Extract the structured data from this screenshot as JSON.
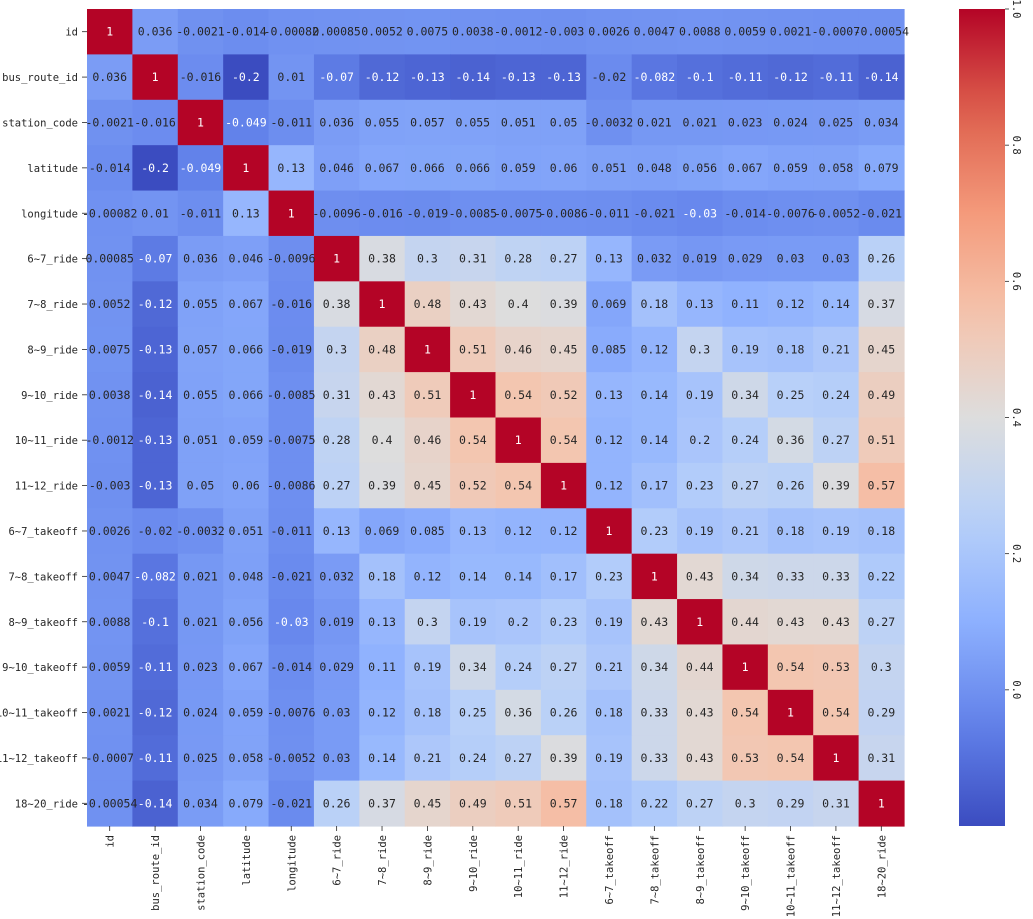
{
  "chart_data": {
    "type": "heatmap",
    "title": "",
    "xlabel": "",
    "ylabel": "",
    "labels": [
      "id",
      "bus_route_id",
      "station_code",
      "latitude",
      "longitude",
      "6~7_ride",
      "7~8_ride",
      "8~9_ride",
      "9~10_ride",
      "10~11_ride",
      "11~12_ride",
      "6~7_takeoff",
      "7~8_takeoff",
      "8~9_takeoff",
      "9~10_takeoff",
      "10~11_takeoff",
      "11~12_takeoff",
      "18~20_ride"
    ],
    "values": [
      [
        1,
        0.036,
        -0.0021,
        -0.014,
        -0.00082,
        0.00085,
        0.0052,
        0.0075,
        0.0038,
        -0.0012,
        -0.003,
        0.0026,
        0.0047,
        0.0088,
        0.0059,
        0.0021,
        -0.0007,
        -0.00054
      ],
      [
        0.036,
        1,
        -0.016,
        -0.2,
        0.01,
        -0.07,
        -0.12,
        -0.13,
        -0.14,
        -0.13,
        -0.13,
        -0.02,
        -0.082,
        -0.1,
        -0.11,
        -0.12,
        -0.11,
        -0.14
      ],
      [
        -0.0021,
        -0.016,
        1,
        -0.049,
        -0.011,
        0.036,
        0.055,
        0.057,
        0.055,
        0.051,
        0.05,
        -0.0032,
        0.021,
        0.021,
        0.023,
        0.024,
        0.025,
        0.034
      ],
      [
        -0.014,
        -0.2,
        -0.049,
        1,
        0.13,
        0.046,
        0.067,
        0.066,
        0.066,
        0.059,
        0.06,
        0.051,
        0.048,
        0.056,
        0.067,
        0.059,
        0.058,
        0.079
      ],
      [
        -0.00082,
        0.01,
        -0.011,
        0.13,
        1,
        -0.0096,
        -0.016,
        -0.019,
        -0.0085,
        -0.0075,
        -0.0086,
        -0.011,
        -0.021,
        -0.03,
        -0.014,
        -0.0076,
        -0.0052,
        -0.021
      ],
      [
        0.00085,
        -0.07,
        0.036,
        0.046,
        -0.0096,
        1,
        0.38,
        0.3,
        0.31,
        0.28,
        0.27,
        0.13,
        0.032,
        0.019,
        0.029,
        0.03,
        0.03,
        0.26
      ],
      [
        0.0052,
        -0.12,
        0.055,
        0.067,
        -0.016,
        0.38,
        1,
        0.48,
        0.43,
        0.4,
        0.39,
        0.069,
        0.18,
        0.13,
        0.11,
        0.12,
        0.14,
        0.37
      ],
      [
        0.0075,
        -0.13,
        0.057,
        0.066,
        -0.019,
        0.3,
        0.48,
        1,
        0.51,
        0.46,
        0.45,
        0.085,
        0.12,
        0.3,
        0.19,
        0.18,
        0.21,
        0.45
      ],
      [
        0.0038,
        -0.14,
        0.055,
        0.066,
        -0.0085,
        0.31,
        0.43,
        0.51,
        1,
        0.54,
        0.52,
        0.13,
        0.14,
        0.19,
        0.34,
        0.25,
        0.24,
        0.49
      ],
      [
        -0.0012,
        -0.13,
        0.051,
        0.059,
        -0.0075,
        0.28,
        0.4,
        0.46,
        0.54,
        1,
        0.54,
        0.12,
        0.14,
        0.2,
        0.24,
        0.36,
        0.27,
        0.51
      ],
      [
        -0.003,
        -0.13,
        0.05,
        0.06,
        -0.0086,
        0.27,
        0.39,
        0.45,
        0.52,
        0.54,
        1,
        0.12,
        0.17,
        0.23,
        0.27,
        0.26,
        0.39,
        0.57
      ],
      [
        0.0026,
        -0.02,
        -0.0032,
        0.051,
        -0.011,
        0.13,
        0.069,
        0.085,
        0.13,
        0.12,
        0.12,
        1,
        0.23,
        0.19,
        0.21,
        0.18,
        0.19,
        0.18
      ],
      [
        0.0047,
        -0.082,
        0.021,
        0.048,
        -0.021,
        0.032,
        0.18,
        0.12,
        0.14,
        0.14,
        0.17,
        0.23,
        1,
        0.43,
        0.34,
        0.33,
        0.33,
        0.22
      ],
      [
        0.0088,
        -0.1,
        0.021,
        0.056,
        -0.03,
        0.019,
        0.13,
        0.3,
        0.19,
        0.2,
        0.23,
        0.19,
        0.43,
        1,
        0.44,
        0.43,
        0.43,
        0.27
      ],
      [
        0.0059,
        -0.11,
        0.023,
        0.067,
        -0.014,
        0.029,
        0.11,
        0.19,
        0.34,
        0.24,
        0.27,
        0.21,
        0.34,
        0.44,
        1,
        0.54,
        0.53,
        0.3
      ],
      [
        0.0021,
        -0.12,
        0.024,
        0.059,
        -0.0076,
        0.03,
        0.12,
        0.18,
        0.25,
        0.36,
        0.26,
        0.18,
        0.33,
        0.43,
        0.54,
        1,
        0.54,
        0.29
      ],
      [
        -0.0007,
        -0.11,
        0.025,
        0.058,
        -0.0052,
        0.03,
        0.14,
        0.21,
        0.24,
        0.27,
        0.39,
        0.19,
        0.33,
        0.43,
        0.53,
        0.54,
        1,
        0.31
      ],
      [
        -0.00054,
        -0.14,
        0.034,
        0.079,
        -0.021,
        0.26,
        0.37,
        0.45,
        0.49,
        0.51,
        0.57,
        0.18,
        0.22,
        0.27,
        0.3,
        0.29,
        0.31,
        1
      ]
    ],
    "colorbar": {
      "colormap": "coolwarm",
      "vmin": -0.2,
      "vmax": 1.0,
      "ticks": [
        0.0,
        0.2,
        0.4,
        0.6,
        0.8,
        1.0
      ],
      "tick_labels": [
        "0.0",
        "0.2",
        "0.4",
        "0.6",
        "0.8",
        "1.0"
      ]
    },
    "colors": {
      "low": "#3b4cc0",
      "mid": "#dddddd",
      "high": "#b40426"
    },
    "grid": false,
    "legend": "colorbar-right"
  }
}
